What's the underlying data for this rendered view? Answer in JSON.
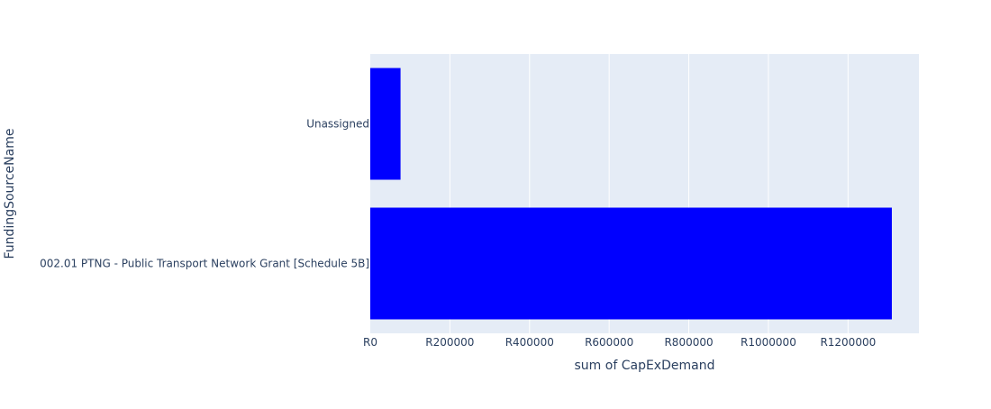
{
  "chart_data": {
    "type": "bar",
    "orientation": "horizontal",
    "title": "",
    "xlabel": "sum of CapExDemand",
    "ylabel": "FundingSourceName",
    "categories": [
      "002.01 PTNG - Public Transport Network Grant [Schedule 5B]",
      "Unassigned"
    ],
    "values": [
      1310000,
      76000
    ],
    "xlim": [
      0,
      1378000
    ],
    "x_ticks": [
      0,
      200000,
      400000,
      600000,
      800000,
      1000000,
      1200000
    ],
    "x_tick_labels": [
      "R0",
      "R200000",
      "R400000",
      "R600000",
      "R800000",
      "R1000000",
      "R1200000"
    ],
    "grid": true,
    "legend": "none",
    "colors": {
      "bar": "#0000ff",
      "plot_background": "#e5ecf6",
      "grid": "#ffffff",
      "text": "#2a3f5f"
    }
  }
}
